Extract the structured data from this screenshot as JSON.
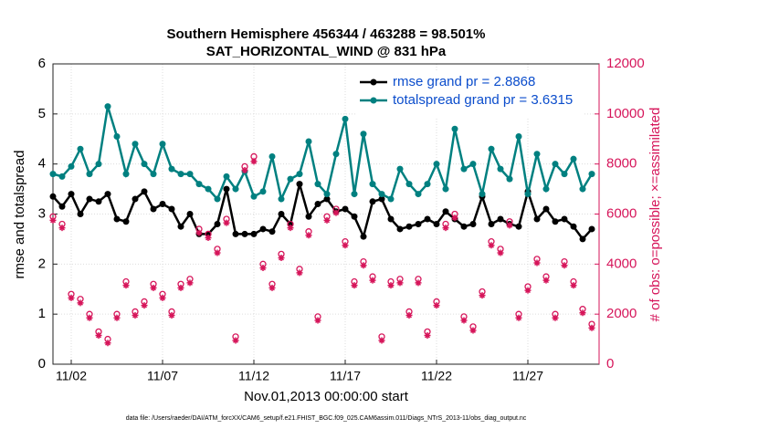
{
  "chart_data": {
    "type": "line",
    "title": "Southern Hemisphere 456344 / 463288 = 98.501%",
    "subtitle": "SAT_HORIZONTAL_WIND @ 831 hPa",
    "xlabel": "Nov.01,2013 00:00:00 start",
    "ylabel": "rmse and totalspread",
    "y2label": "# of obs: o=possible; ×=assimilated",
    "footnote": "data file: /Users/raeder/DAI/ATM_forcXX/CAM6_setup/f.e21.FHIST_BGC.f09_025.CAM6assim.011/Diags_NTrS_2013-11/obs_diag_output.nc",
    "x": [
      0,
      0.5,
      1,
      1.5,
      2,
      2.5,
      3,
      3.5,
      4,
      4.5,
      5,
      5.5,
      6,
      6.5,
      7,
      7.5,
      8,
      8.5,
      9,
      9.5,
      10,
      10.5,
      11,
      11.5,
      12,
      12.5,
      13,
      13.5,
      14,
      14.5,
      15,
      15.5,
      16,
      16.5,
      17,
      17.5,
      18,
      18.5,
      19,
      19.5,
      20,
      20.5,
      21,
      21.5,
      22,
      22.5,
      23,
      23.5,
      24,
      24.5,
      25,
      25.5,
      26,
      26.5,
      27,
      27.5,
      28,
      28.5,
      29,
      29.5
    ],
    "xlim": [
      0,
      29.9
    ],
    "xticks": [
      {
        "value": 1,
        "label": "11/02"
      },
      {
        "value": 6,
        "label": "11/07"
      },
      {
        "value": 11,
        "label": "11/12"
      },
      {
        "value": 16,
        "label": "11/17"
      },
      {
        "value": 21,
        "label": "11/22"
      },
      {
        "value": 26,
        "label": "11/27"
      }
    ],
    "ylim": [
      0,
      6
    ],
    "yticks": [
      0,
      1,
      2,
      3,
      4,
      5,
      6
    ],
    "y2lim": [
      0,
      12000
    ],
    "y2ticks": [
      0,
      2000,
      4000,
      6000,
      8000,
      10000,
      12000
    ],
    "grid": true,
    "legend": "upper right",
    "series": [
      {
        "name": "rmse grand pr = 2.8868",
        "color": "#000000",
        "marker": "dot",
        "values": [
          3.35,
          3.15,
          3.4,
          3.0,
          3.3,
          3.25,
          3.4,
          2.9,
          2.85,
          3.3,
          3.45,
          3.1,
          3.2,
          3.1,
          2.75,
          3.0,
          2.6,
          2.6,
          2.8,
          3.5,
          2.6,
          2.6,
          2.6,
          2.7,
          2.65,
          3.0,
          2.8,
          3.6,
          2.95,
          3.2,
          3.3,
          3.05,
          3.1,
          2.95,
          2.55,
          3.25,
          3.3,
          2.9,
          2.7,
          2.75,
          2.8,
          2.9,
          2.8,
          3.05,
          2.9,
          2.75,
          2.8,
          3.35,
          2.8,
          2.9,
          2.8,
          2.75,
          3.45,
          2.9,
          3.1,
          2.85,
          2.9,
          2.75,
          2.5,
          2.7
        ]
      },
      {
        "name": "totalspread grand pr = 3.6315",
        "color": "#008080",
        "marker": "dot",
        "values": [
          3.8,
          3.75,
          3.95,
          4.3,
          3.8,
          4.0,
          5.15,
          4.55,
          3.8,
          4.4,
          4.0,
          3.8,
          4.4,
          3.9,
          3.8,
          3.8,
          3.6,
          3.5,
          3.3,
          3.75,
          3.5,
          3.85,
          3.35,
          3.45,
          4.15,
          3.3,
          3.7,
          3.8,
          4.45,
          3.6,
          3.4,
          4.2,
          4.9,
          3.4,
          4.6,
          3.6,
          3.4,
          3.3,
          3.9,
          3.6,
          3.4,
          3.6,
          4.0,
          3.5,
          4.7,
          3.9,
          4.0,
          3.4,
          4.3,
          3.9,
          3.7,
          4.55,
          3.4,
          4.2,
          3.5,
          4.0,
          3.8,
          4.1,
          3.5,
          3.8
        ]
      },
      {
        "color": "#d6155a",
        "marker": "circle",
        "axis": "y2",
        "values": [
          5900,
          5600,
          2800,
          2600,
          2000,
          1300,
          1000,
          2000,
          3300,
          2100,
          2500,
          3200,
          2800,
          2100,
          3200,
          3400,
          5400,
          5200,
          4600,
          5800,
          1100,
          7900,
          8300,
          4000,
          3200,
          4400,
          5600,
          3800,
          5300,
          1900,
          5900,
          6200,
          4900,
          3300,
          4100,
          3500,
          1100,
          3300,
          3400,
          2100,
          3400,
          1300,
          2500,
          5600,
          6000,
          1900,
          1500,
          2900,
          4900,
          4600,
          5700,
          2000,
          3100,
          4200,
          3500,
          2000,
          4100,
          3300,
          2200,
          1600
        ]
      },
      {
        "color": "#d6155a",
        "marker": "star",
        "axis": "y2",
        "values": [
          5750,
          5450,
          2650,
          2450,
          1850,
          1150,
          850,
          1850,
          3150,
          1950,
          2350,
          3050,
          2650,
          1950,
          3050,
          3250,
          5250,
          5050,
          4450,
          5650,
          950,
          7750,
          8100,
          3850,
          3050,
          4250,
          5450,
          3650,
          5150,
          1750,
          5750,
          6050,
          4750,
          3150,
          3950,
          3350,
          950,
          3150,
          3250,
          1950,
          3250,
          1150,
          2350,
          5450,
          5850,
          1750,
          1350,
          2750,
          4750,
          4450,
          5550,
          1850,
          2950,
          4050,
          3350,
          1850,
          3950,
          3150,
          2050,
          1450
        ]
      }
    ]
  }
}
